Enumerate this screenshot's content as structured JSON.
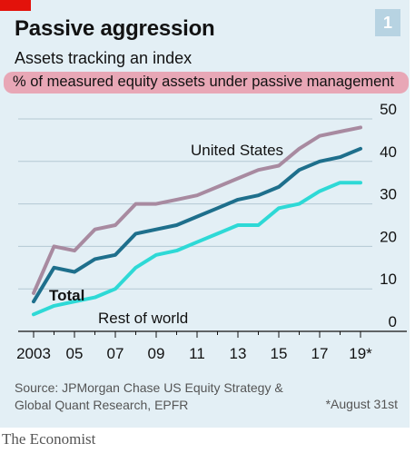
{
  "header": {
    "title": "Passive aggression",
    "subtitle": "Assets tracking an index",
    "unit_label": "% of measured equity assets under passive management",
    "chart_number": "1"
  },
  "chart_data": {
    "type": "line",
    "title": "Passive aggression",
    "subtitle": "Assets tracking an index",
    "ylabel": "% of measured equity assets under passive management",
    "xlabel": "",
    "x": [
      2003,
      2004,
      2005,
      2006,
      2007,
      2008,
      2009,
      2010,
      2011,
      2012,
      2013,
      2014,
      2015,
      2016,
      2017,
      2018,
      2019
    ],
    "xlim": [
      2002.6,
      2019.3
    ],
    "ylim": [
      0,
      50
    ],
    "x_ticks": [
      "2003",
      "05",
      "07",
      "09",
      "11",
      "13",
      "15",
      "17",
      "19*"
    ],
    "x_tick_values": [
      2003,
      2005,
      2007,
      2009,
      2011,
      2013,
      2015,
      2017,
      2019
    ],
    "y_ticks": [
      0,
      10,
      20,
      30,
      40,
      50
    ],
    "grid": true,
    "legend": "inline labels",
    "series": [
      {
        "name": "United States",
        "color": "#a88aa0",
        "values": [
          9,
          20,
          19,
          24,
          25,
          30,
          30,
          31,
          32,
          34,
          36,
          38,
          39,
          43,
          46,
          47,
          48
        ]
      },
      {
        "name": "Total",
        "color": "#1e6f8c",
        "values": [
          7,
          15,
          14,
          17,
          18,
          23,
          24,
          25,
          27,
          29,
          31,
          32,
          34,
          38,
          40,
          41,
          43
        ]
      },
      {
        "name": "Rest of world",
        "color": "#2ed9d6",
        "values": [
          4,
          6,
          7,
          8,
          10,
          15,
          18,
          19,
          21,
          23,
          25,
          25,
          29,
          30,
          33,
          35,
          35
        ]
      }
    ]
  },
  "footer": {
    "source_line1": "Source: JPMorgan Chase US Equity Strategy &",
    "source_line2": "Global Quant Research, EPFR",
    "footnote": "*August 31st",
    "brand": "The Economist"
  }
}
